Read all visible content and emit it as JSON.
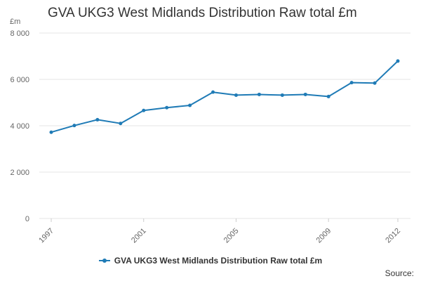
{
  "header": {
    "title": "GVA UKG3 West Midlands Distribution Raw total £m"
  },
  "footer": {
    "source_label": "Source:"
  },
  "colors": {
    "series": "#1f7bb6",
    "grid": "#e6e6e6",
    "axis_text": "#666666"
  },
  "chart_data": {
    "type": "line",
    "title": "GVA UKG3 West Midlands Distribution Raw total £m",
    "unit_label": "£m",
    "x": [
      1997,
      1998,
      1999,
      2000,
      2001,
      2002,
      2003,
      2004,
      2005,
      2006,
      2007,
      2008,
      2009,
      2010,
      2011,
      2012
    ],
    "x_tick_labels": [
      "1997",
      "2001",
      "2005",
      "2009",
      "2012"
    ],
    "y_tick_labels": [
      "0",
      "2 000",
      "4 000",
      "6 000",
      "8 000"
    ],
    "y_ticks": [
      0,
      2000,
      4000,
      6000,
      8000
    ],
    "ylim": [
      0,
      8000
    ],
    "grid": true,
    "legend_position": "bottom",
    "series": [
      {
        "name": "GVA UKG3 West Midlands Distribution Raw total £m",
        "values": [
          3720,
          4010,
          4260,
          4100,
          4660,
          4780,
          4880,
          5450,
          5320,
          5350,
          5320,
          5350,
          5260,
          5860,
          5840,
          6790
        ]
      }
    ]
  }
}
